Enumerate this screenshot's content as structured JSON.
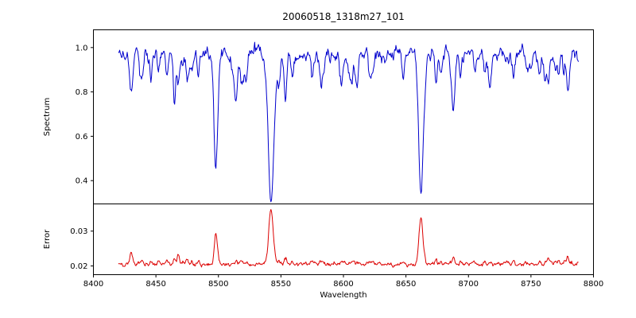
{
  "chart_data": {
    "type": "line",
    "title": "20060518_1318m27_101",
    "xlabel": "Wavelength",
    "x_range": [
      8400,
      8800
    ],
    "x_data_range": [
      8420,
      8788
    ],
    "x_ticks": [
      8400,
      8450,
      8500,
      8550,
      8600,
      8650,
      8700,
      8750,
      8800
    ],
    "x_tick_labels": [
      "8400",
      "8450",
      "8500",
      "8550",
      "8600",
      "8650",
      "8700",
      "8750",
      "8800"
    ],
    "seed": 20060518,
    "legend": "none",
    "grid": false,
    "panels": [
      {
        "name": "spectrum",
        "ylabel": "Spectrum",
        "color": "#0000cd",
        "ylim": [
          0.295,
          1.08
        ],
        "yticks": [
          0.4,
          0.6,
          0.8,
          1.0
        ],
        "ytick_labels": [
          "0.4",
          "0.6",
          "0.8",
          "1.0"
        ],
        "continuum": 0.97,
        "noise": {
          "sigma": 0.016,
          "smooth": 0.6
        }
      },
      {
        "name": "error",
        "ylabel": "Error",
        "color": "#dc0000",
        "ylim": [
          0.0175,
          0.0378
        ],
        "yticks": [
          0.02,
          0.03
        ],
        "ytick_labels": [
          "0.02",
          "0.03"
        ],
        "baseline": 0.0205,
        "noise": {
          "sigma": 0.0003,
          "smooth": 0.5
        }
      }
    ],
    "features": [
      {
        "center": 8430,
        "depth": 0.1,
        "width": 1.0,
        "err_peak": 0.0235
      },
      {
        "center": 8439,
        "depth": 0.12,
        "width": 1.0,
        "err_peak": 0.0215
      },
      {
        "center": 8446,
        "depth": 0.1,
        "width": 0.9,
        "err_peak": 0.0215
      },
      {
        "center": 8452,
        "depth": 0.09,
        "width": 0.9,
        "err_peak": 0.021
      },
      {
        "center": 8459,
        "depth": 0.11,
        "width": 1.0,
        "err_peak": 0.0215
      },
      {
        "center": 8468,
        "depth": 0.15,
        "width": 1.1,
        "err_peak": 0.0235
      },
      {
        "center": 8476,
        "depth": 0.08,
        "width": 0.9,
        "err_peak": 0.021
      },
      {
        "center": 8484,
        "depth": 0.1,
        "width": 0.9,
        "err_peak": 0.021
      },
      {
        "center": 8498,
        "depth": 0.5,
        "width": 1.5,
        "err_peak": 0.029
      },
      {
        "center": 8514,
        "depth": 0.22,
        "width": 1.1,
        "err_peak": 0.0215
      },
      {
        "center": 8522,
        "depth": 0.12,
        "width": 1.0,
        "err_peak": 0.021
      },
      {
        "center": 8542,
        "depth": 0.68,
        "width": 2.1,
        "err_peak": 0.036
      },
      {
        "center": 8559,
        "depth": 0.1,
        "width": 0.9,
        "err_peak": 0.021
      },
      {
        "center": 8575,
        "depth": 0.1,
        "width": 0.9,
        "err_peak": 0.021
      },
      {
        "center": 8582,
        "depth": 0.11,
        "width": 0.9,
        "err_peak": 0.021
      },
      {
        "center": 8598,
        "depth": 0.13,
        "width": 1.0,
        "err_peak": 0.0215
      },
      {
        "center": 8611,
        "depth": 0.09,
        "width": 0.9,
        "err_peak": 0.021
      },
      {
        "center": 8621,
        "depth": 0.11,
        "width": 1.0,
        "err_peak": 0.021
      },
      {
        "center": 8648,
        "depth": 0.11,
        "width": 1.0,
        "err_peak": 0.021
      },
      {
        "center": 8662,
        "depth": 0.64,
        "width": 1.9,
        "err_peak": 0.0335
      },
      {
        "center": 8674,
        "depth": 0.13,
        "width": 1.0,
        "err_peak": 0.0215
      },
      {
        "center": 8688,
        "depth": 0.26,
        "width": 1.2,
        "err_peak": 0.0225
      },
      {
        "center": 8713,
        "depth": 0.09,
        "width": 0.9,
        "err_peak": 0.0215
      },
      {
        "center": 8718,
        "depth": 0.11,
        "width": 0.9,
        "err_peak": 0.0215
      },
      {
        "center": 8736,
        "depth": 0.11,
        "width": 1.0,
        "err_peak": 0.0215
      },
      {
        "center": 8747,
        "depth": 0.09,
        "width": 0.9,
        "err_peak": 0.021
      },
      {
        "center": 8757,
        "depth": 0.11,
        "width": 1.0,
        "err_peak": 0.0215
      },
      {
        "center": 8764,
        "depth": 0.13,
        "width": 1.0,
        "err_peak": 0.0225
      },
      {
        "center": 8772,
        "depth": 0.09,
        "width": 0.9,
        "err_peak": 0.0215
      },
      {
        "center": 8779,
        "depth": 0.11,
        "width": 1.0,
        "err_peak": 0.022
      }
    ],
    "minor_features": {
      "count": 45,
      "depth_min": 0.02,
      "depth_max": 0.1,
      "width_min": 0.6,
      "width_max": 1.4
    }
  }
}
